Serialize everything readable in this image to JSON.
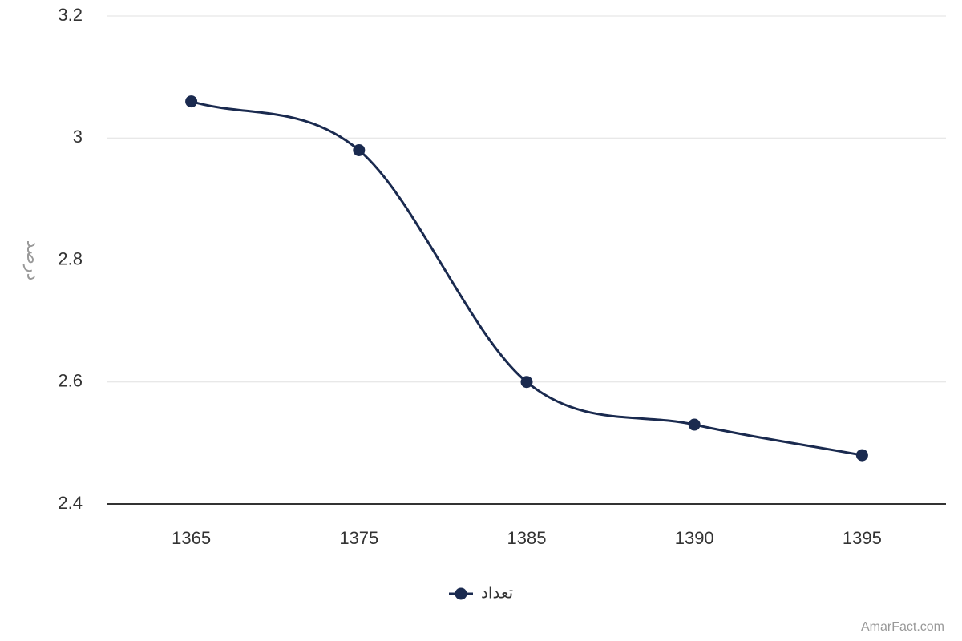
{
  "chart_data": {
    "type": "line",
    "y_label": "درصد",
    "categories": [
      "1365",
      "1375",
      "1385",
      "1390",
      "1395"
    ],
    "series": [
      {
        "name": "تعداد",
        "color": "#1a2a4f",
        "values": [
          3.06,
          2.98,
          2.6,
          2.53,
          2.48
        ]
      }
    ],
    "ylim": [
      2.4,
      3.2
    ],
    "yticks": [
      2.4,
      2.6,
      2.8,
      3,
      3.2
    ],
    "grid": true,
    "legend": "bottom",
    "source": "AmarFact.com"
  }
}
